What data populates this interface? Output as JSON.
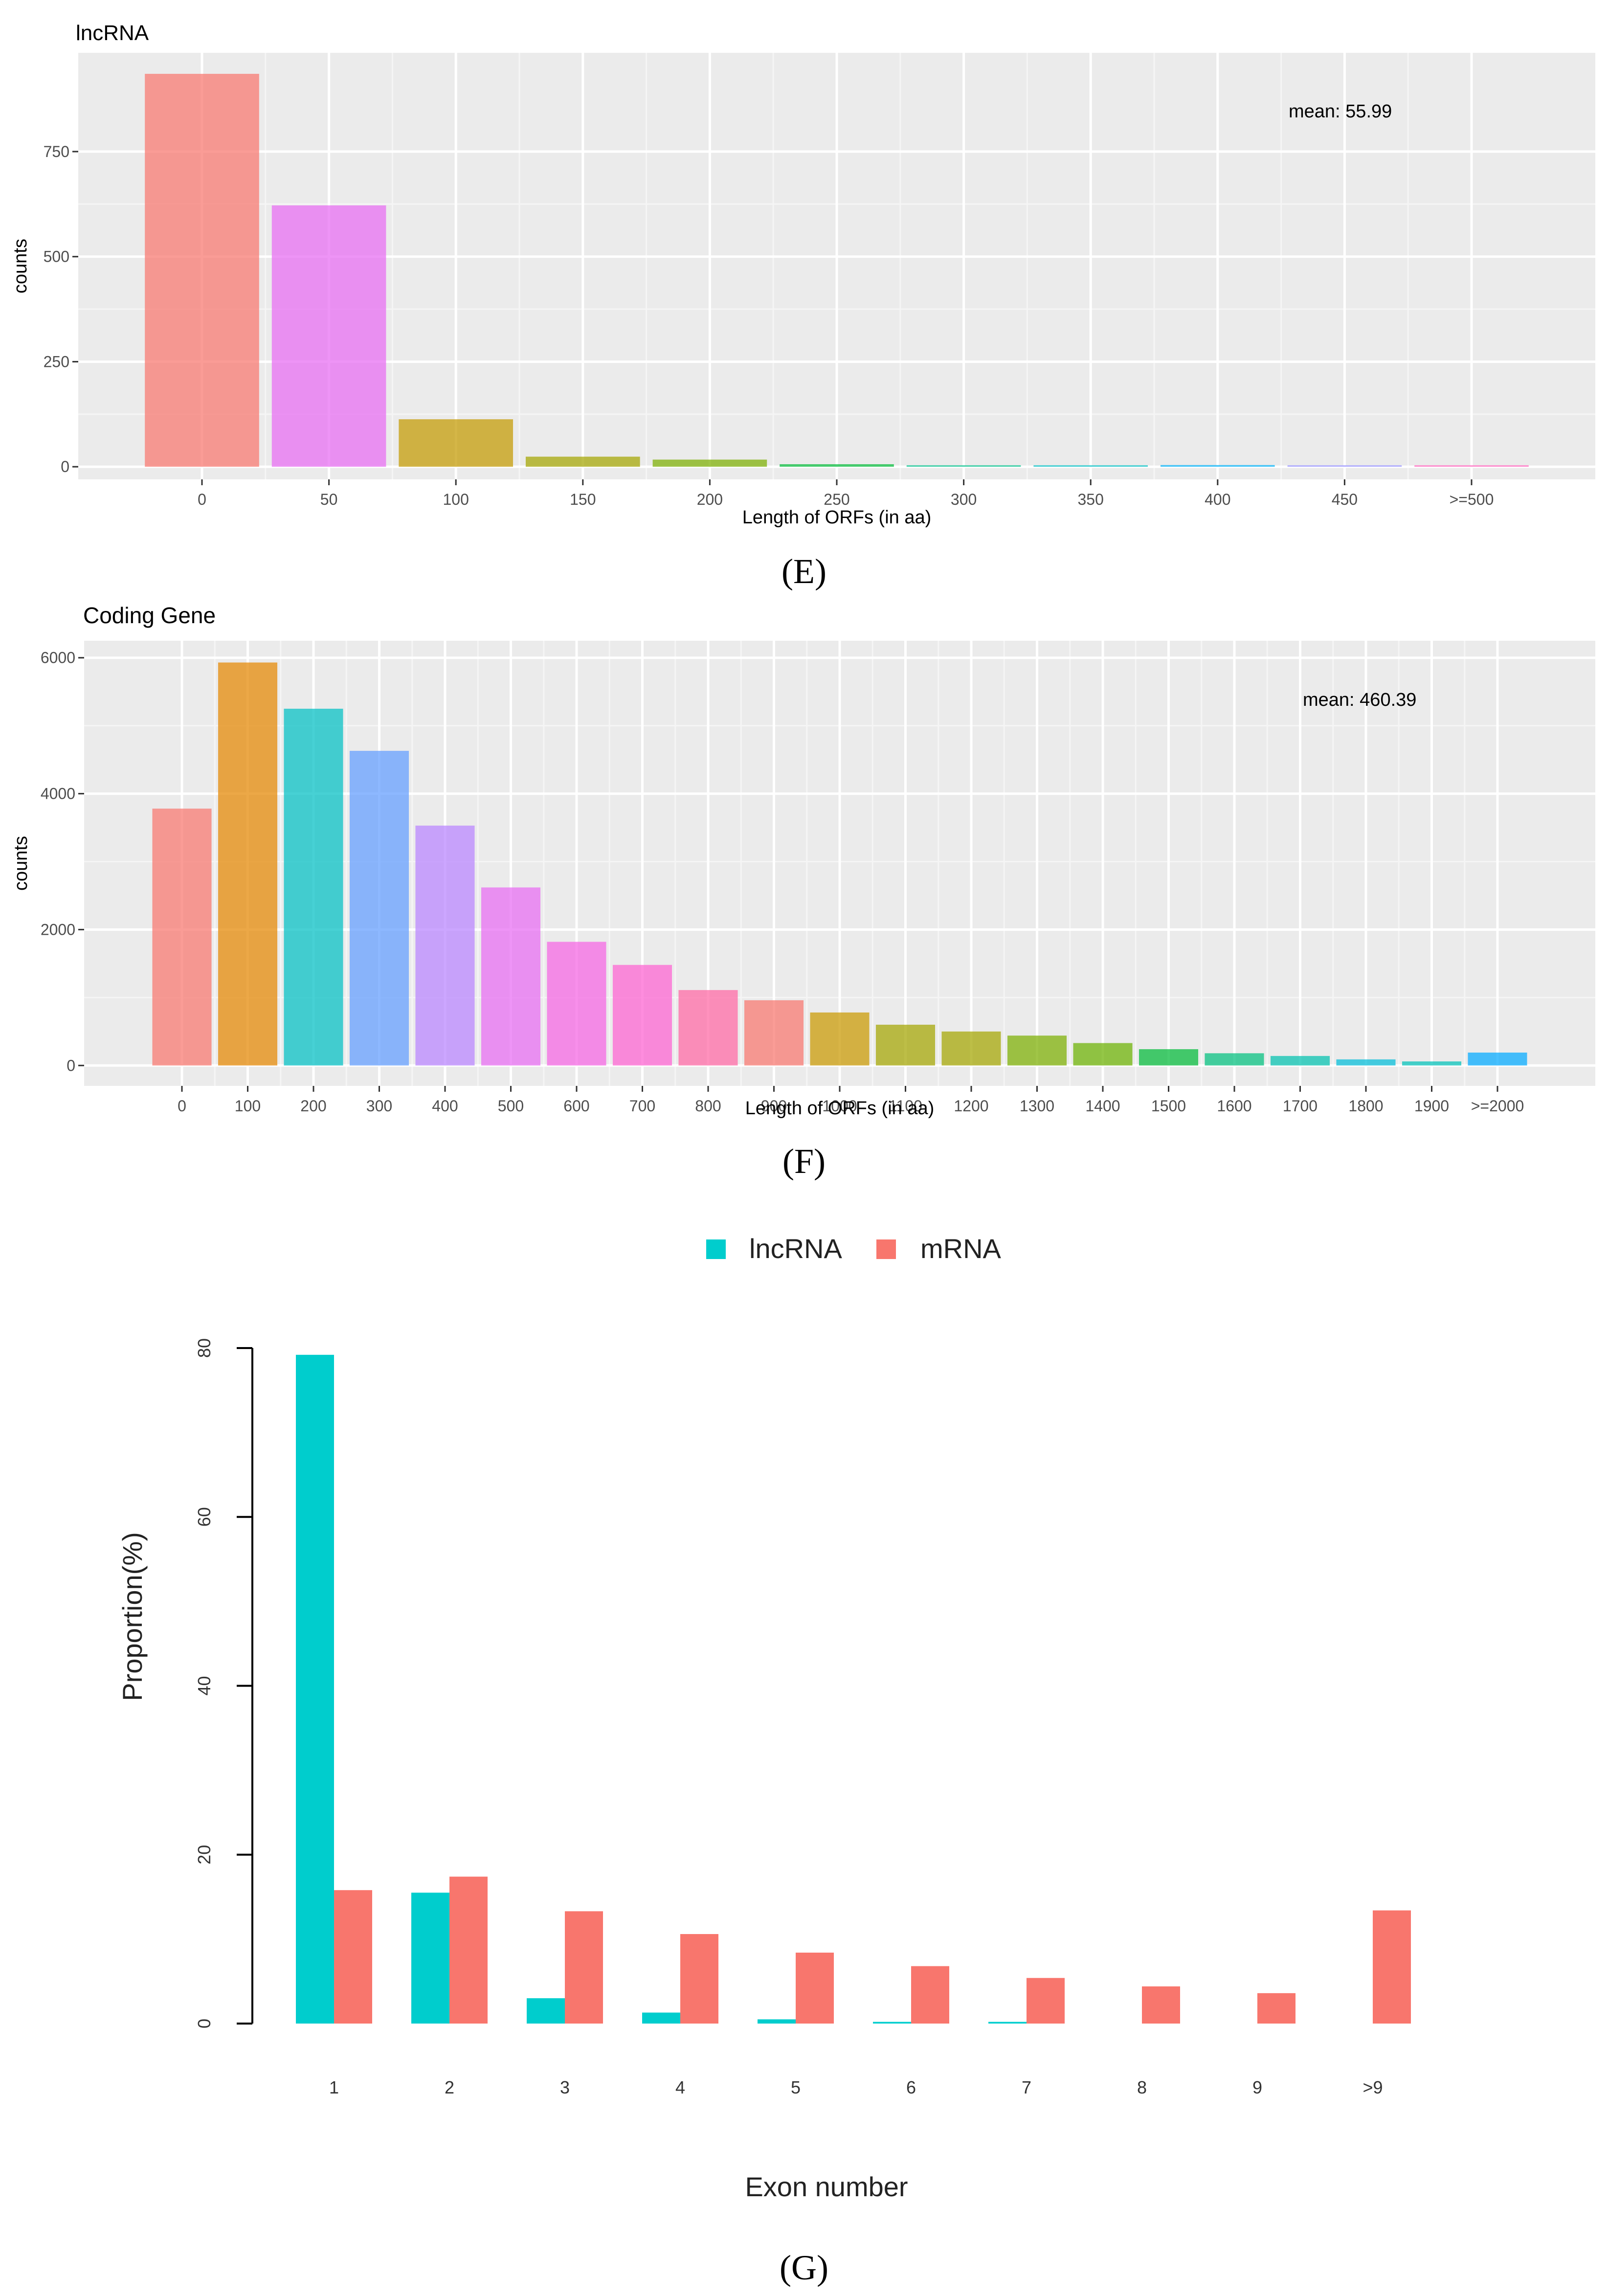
{
  "chart_data": [
    {
      "panel": "E",
      "type": "bar",
      "title": "lncRNA",
      "xlabel": "Length of ORFs (in aa)",
      "ylabel": "counts",
      "categories": [
        "0",
        "50",
        "100",
        "150",
        "200",
        "250",
        "300",
        "350",
        "400",
        "450",
        ">=500"
      ],
      "values": [
        935,
        622,
        113,
        24,
        17,
        6,
        3,
        1,
        4,
        1,
        2
      ],
      "colors": [
        "#F8766D",
        "#E76BF3",
        "#C49A00",
        "#A3A500",
        "#7CAE00",
        "#00BA38",
        "#00C08B",
        "#00BFC4",
        "#00B0F6",
        "#9590FF",
        "#FF62BC"
      ],
      "yticks": [
        0,
        250,
        500,
        750
      ],
      "ylim": [
        -30,
        985
      ],
      "annotation": "mean: 55.99",
      "grid": true,
      "caption": "(E)"
    },
    {
      "panel": "F",
      "type": "bar",
      "title": "Coding Gene",
      "xlabel": "Length of ORFs (in aa)",
      "ylabel": "counts",
      "categories": [
        "0",
        "100",
        "200",
        "300",
        "400",
        "500",
        "600",
        "700",
        "800",
        "900",
        "1000",
        "1100",
        "1200",
        "1300",
        "1400",
        "1500",
        "1600",
        "1700",
        "1800",
        "1900",
        ">=2000"
      ],
      "values": [
        3780,
        5930,
        5250,
        4630,
        3530,
        2620,
        1820,
        1480,
        1110,
        960,
        780,
        600,
        500,
        440,
        330,
        240,
        180,
        140,
        90,
        60,
        190
      ],
      "colors": [
        "#F8766D",
        "#E58700",
        "#00BFC4",
        "#619CFF",
        "#B983FF",
        "#E76BF3",
        "#F564E3",
        "#FD61D1",
        "#FF67A4",
        "#F8766D",
        "#C99800",
        "#A3A500",
        "#A3A500",
        "#7CAE00",
        "#6BB100",
        "#00BA38",
        "#00BF7D",
        "#00C0AF",
        "#00BCD8",
        "#00C0B8",
        "#00A9FF"
      ],
      "yticks": [
        0,
        2000,
        4000,
        6000
      ],
      "ylim": [
        -300,
        6250
      ],
      "annotation": "mean: 460.39",
      "grid": true,
      "caption": "(F)"
    },
    {
      "panel": "G",
      "type": "bar",
      "xlabel": "Exon number",
      "ylabel": "Proportion(%)",
      "categories": [
        "1",
        "2",
        "3",
        "4",
        "5",
        "6",
        "7",
        "8",
        "9",
        ">9"
      ],
      "series": [
        {
          "name": "lncRNA",
          "color": "#00CDCD",
          "values": [
            79.2,
            15.5,
            3.0,
            1.3,
            0.5,
            0.2,
            0.2,
            0.0,
            0.0,
            0.0
          ]
        },
        {
          "name": "mRNA",
          "color": "#F8766D",
          "values": [
            15.8,
            17.4,
            13.3,
            10.6,
            8.4,
            6.8,
            5.4,
            4.4,
            3.6,
            13.4
          ]
        }
      ],
      "yticks": [
        0,
        20,
        40,
        60,
        80
      ],
      "ylim": [
        0,
        80
      ],
      "legend": "top-center",
      "grid": false,
      "caption": "(G)"
    }
  ]
}
